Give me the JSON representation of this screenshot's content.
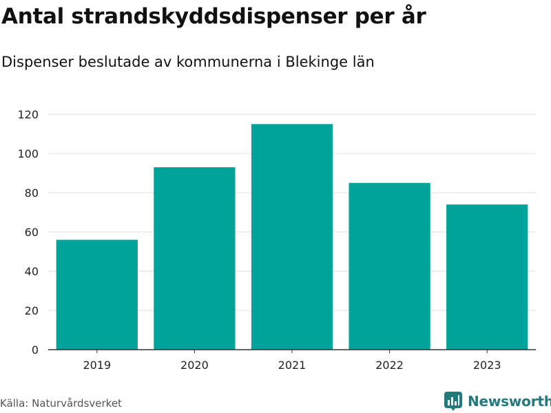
{
  "title": "Antal strandskyddsdispenser per år",
  "subtitle": "Dispenser beslutade av kommunerna i Blekinge län",
  "source": "Källa: Naturvårdsverket",
  "brand": {
    "name": "Newsworthy",
    "icon": "newsworthy-logo-icon"
  },
  "colors": {
    "bar": "#00a398",
    "grid": "#dddddd",
    "axis": "#333333",
    "brand": "#24797c"
  },
  "chart_data": {
    "type": "bar",
    "title": "Antal strandskyddsdispenser per år",
    "subtitle": "Dispenser beslutade av kommunerna i Blekinge län",
    "categories": [
      "2019",
      "2020",
      "2021",
      "2022",
      "2023"
    ],
    "values": [
      56,
      93,
      115,
      85,
      74
    ],
    "xlabel": "",
    "ylabel": "",
    "ylim": [
      0,
      120
    ],
    "yticks": [
      0,
      20,
      40,
      60,
      80,
      100,
      120
    ],
    "grid": true
  }
}
